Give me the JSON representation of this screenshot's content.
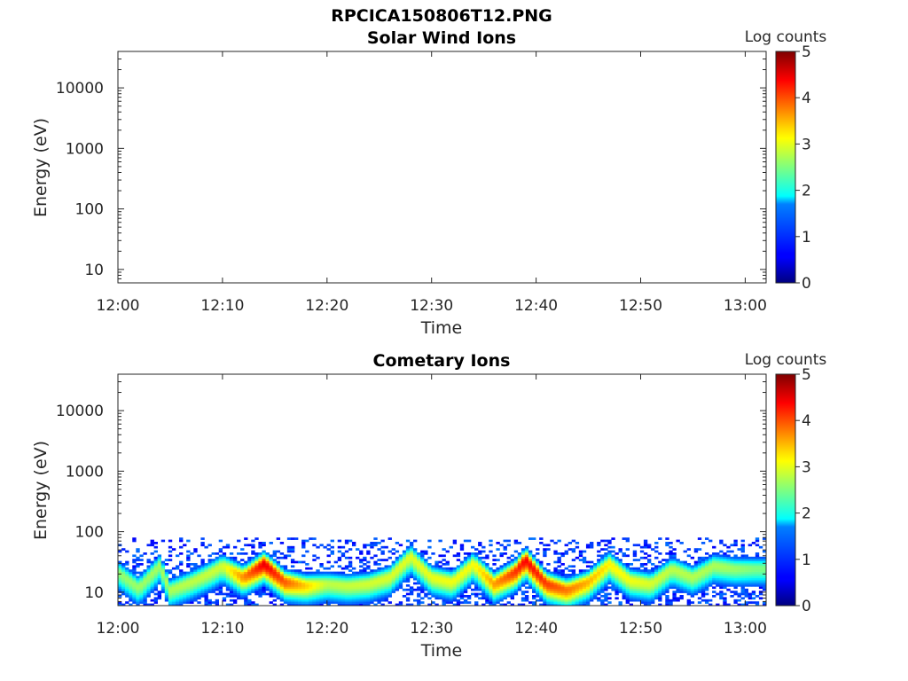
{
  "figure": {
    "filename_title": "RPCICA150806T12.PNG"
  },
  "colorbar": {
    "title": "Log counts",
    "ticks": [
      "0",
      "1",
      "2",
      "3",
      "4",
      "5"
    ],
    "range": [
      0,
      5
    ],
    "colormap": "jet"
  },
  "chart_data": [
    {
      "type": "heatmap",
      "title": "Solar Wind Ions",
      "xlabel": "Time",
      "ylabel": "Energy (eV)",
      "x_ticks": [
        "12:00",
        "12:10",
        "12:20",
        "12:30",
        "12:40",
        "12:50",
        "13:00"
      ],
      "y_ticks": [
        "10",
        "100",
        "1000",
        "10000"
      ],
      "y_scale": "log",
      "x_range": [
        "12:00",
        "13:02"
      ],
      "y_range": [
        6,
        40000
      ],
      "data": "empty (no counts recorded)"
    },
    {
      "type": "heatmap",
      "title": "Cometary Ions",
      "xlabel": "Time",
      "ylabel": "Energy (eV)",
      "x_ticks": [
        "12:00",
        "12:10",
        "12:20",
        "12:30",
        "12:40",
        "12:50",
        "13:00"
      ],
      "y_ticks": [
        "10",
        "100",
        "1000",
        "10000"
      ],
      "y_scale": "log",
      "x_range": [
        "12:00",
        "13:02"
      ],
      "y_range": [
        6,
        40000
      ],
      "sparse_noise_upper_energy_eV": 80,
      "peak_center_energy_eV": [
        {
          "t": "12:00",
          "e": 22
        },
        {
          "t": "12:02",
          "e": 12
        },
        {
          "t": "12:04",
          "e": 28
        },
        {
          "t": "12:05",
          "e": 11
        },
        {
          "t": "12:07",
          "e": 15
        },
        {
          "t": "12:09",
          "e": 22
        },
        {
          "t": "12:10",
          "e": 28
        },
        {
          "t": "12:12",
          "e": 18
        },
        {
          "t": "12:14",
          "e": 30
        },
        {
          "t": "12:16",
          "e": 15
        },
        {
          "t": "12:18",
          "e": 13
        },
        {
          "t": "12:20",
          "e": 14
        },
        {
          "t": "12:22",
          "e": 13
        },
        {
          "t": "12:24",
          "e": 14
        },
        {
          "t": "12:26",
          "e": 18
        },
        {
          "t": "12:28",
          "e": 40
        },
        {
          "t": "12:30",
          "e": 18
        },
        {
          "t": "12:32",
          "e": 15
        },
        {
          "t": "12:34",
          "e": 30
        },
        {
          "t": "12:36",
          "e": 14
        },
        {
          "t": "12:38",
          "e": 22
        },
        {
          "t": "12:39",
          "e": 35
        },
        {
          "t": "12:41",
          "e": 14
        },
        {
          "t": "12:43",
          "e": 11
        },
        {
          "t": "12:45",
          "e": 15
        },
        {
          "t": "12:47",
          "e": 30
        },
        {
          "t": "12:49",
          "e": 16
        },
        {
          "t": "12:51",
          "e": 14
        },
        {
          "t": "12:53",
          "e": 25
        },
        {
          "t": "12:55",
          "e": 18
        },
        {
          "t": "12:57",
          "e": 28
        },
        {
          "t": "12:59",
          "e": 25
        },
        {
          "t": "13:01",
          "e": 25
        }
      ],
      "peak_log_counts": [
        {
          "t": "12:00",
          "v": 2.6
        },
        {
          "t": "12:04",
          "v": 2.7
        },
        {
          "t": "12:10",
          "v": 2.9
        },
        {
          "t": "12:14",
          "v": 4.5
        },
        {
          "t": "12:20",
          "v": 2.8
        },
        {
          "t": "12:28",
          "v": 3.0
        },
        {
          "t": "12:34",
          "v": 3.1
        },
        {
          "t": "12:39",
          "v": 4.4
        },
        {
          "t": "12:47",
          "v": 3.2
        },
        {
          "t": "12:53",
          "v": 2.8
        },
        {
          "t": "12:58",
          "v": 2.7
        },
        {
          "t": "13:01",
          "v": 2.5
        }
      ]
    }
  ]
}
